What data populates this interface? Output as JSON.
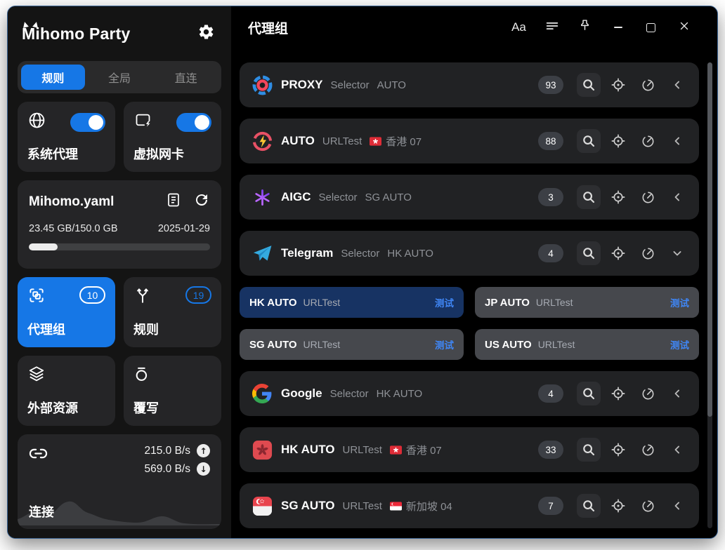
{
  "colors": {
    "accent": "#1677e6",
    "test_blue": "#3f86f5",
    "selected_node_bg": "#173363"
  },
  "sidebar": {
    "app_title": "Mihomo Party",
    "mode_tabs": [
      {
        "label": "规则",
        "active": true
      },
      {
        "label": "全局",
        "active": false
      },
      {
        "label": "直连",
        "active": false
      }
    ],
    "toggles": [
      {
        "label": "系统代理",
        "icon": "globe-icon",
        "on": true
      },
      {
        "label": "虚拟网卡",
        "icon": "tun-icon",
        "on": true
      }
    ],
    "profile": {
      "name": "Mihomo.yaml",
      "usage": "23.45 GB/150.0 GB",
      "date": "2025-01-29",
      "progress_percent": 16
    },
    "nav": [
      {
        "label": "代理组",
        "badge": "10",
        "icon": "proxy-groups-icon",
        "active": true
      },
      {
        "label": "规则",
        "badge": "19",
        "icon": "rules-icon",
        "active": false
      },
      {
        "label": "外部资源",
        "icon": "resources-icon",
        "active": false
      },
      {
        "label": "覆写",
        "icon": "override-icon",
        "active": false
      }
    ],
    "connection": {
      "label": "连接",
      "upload": "215.0 B/s",
      "download": "569.0 B/s"
    }
  },
  "header": {
    "title": "代理组",
    "text_button_label": "Aa"
  },
  "groups": [
    {
      "name": "PROXY",
      "type": "Selector",
      "current": "AUTO",
      "flag": "",
      "badge": "93",
      "icon": "proxy-logo",
      "expanded": false
    },
    {
      "name": "AUTO",
      "type": "URLTest",
      "current": "香港 07",
      "flag": "hk",
      "badge": "88",
      "icon": "auto-logo",
      "expanded": false
    },
    {
      "name": "AIGC",
      "type": "Selector",
      "current": "SG AUTO",
      "flag": "",
      "badge": "3",
      "icon": "aigc-logo",
      "expanded": false
    },
    {
      "name": "Telegram",
      "type": "Selector",
      "current": "HK AUTO",
      "flag": "",
      "badge": "4",
      "icon": "telegram-logo",
      "expanded": true,
      "nodes": [
        {
          "name": "HK AUTO",
          "type": "URLTest",
          "test_label": "测试",
          "selected": true
        },
        {
          "name": "JP AUTO",
          "type": "URLTest",
          "test_label": "测试",
          "selected": false
        },
        {
          "name": "SG AUTO",
          "type": "URLTest",
          "test_label": "测试",
          "selected": false
        },
        {
          "name": "US AUTO",
          "type": "URLTest",
          "test_label": "测试",
          "selected": false
        }
      ]
    },
    {
      "name": "Google",
      "type": "Selector",
      "current": "HK AUTO",
      "flag": "",
      "badge": "4",
      "icon": "google-logo",
      "expanded": false
    },
    {
      "name": "HK AUTO",
      "type": "URLTest",
      "current": "香港 07",
      "flag": "hk",
      "badge": "33",
      "icon": "hk-logo",
      "expanded": false
    },
    {
      "name": "SG AUTO",
      "type": "URLTest",
      "current": "新加坡 04",
      "flag": "sg",
      "badge": "7",
      "icon": "sg-logo",
      "expanded": false
    }
  ]
}
